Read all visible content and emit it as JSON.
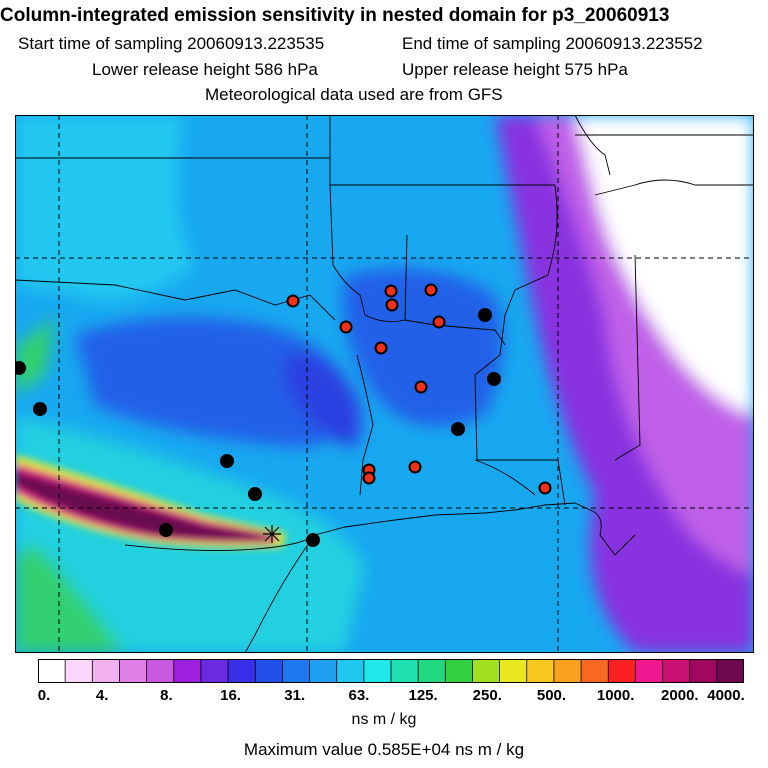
{
  "header": {
    "title": "Column-integrated emission sensitivity in nested domain for p3_20060913",
    "start_label": "Start time of sampling 20060913.223535",
    "end_label": "End time of sampling 20060913.223552",
    "lower_label": "Lower release height  586 hPa",
    "upper_label": "Upper release height  575 hPa",
    "met_label": "Meteorological data used are from GFS"
  },
  "colorbar": {
    "ticks": [
      "0.",
      "4.",
      "8.",
      "16.",
      "31.",
      "63.",
      "125.",
      "250.",
      "500.",
      "1000.",
      "2000.",
      "4000."
    ],
    "colors": [
      "#ffffff",
      "#fbd8fb",
      "#f2b2f2",
      "#e080e8",
      "#c858e0",
      "#a020e0",
      "#6a2ae0",
      "#3a30e8",
      "#2050e8",
      "#1e78f0",
      "#20a0f0",
      "#20c8f0",
      "#20e8e8",
      "#20e0b0",
      "#20d880",
      "#30d040",
      "#a0e020",
      "#e8e820",
      "#f8c820",
      "#f8a020",
      "#f86820",
      "#f82020",
      "#f01890",
      "#c81070",
      "#a00860",
      "#700850"
    ],
    "unit": "ns m / kg"
  },
  "footer": {
    "max_value": "Maximum value  0.585E+04 ns m / kg"
  },
  "map": {
    "colors": {
      "background": "#18a8f0",
      "coast_fill": "#28c8f0",
      "blue_zone": "#2060e8",
      "deep_blue": "#2a40e0",
      "purple": "#8830e0",
      "magenta": "#c060e8",
      "white_zone": "#ffffff",
      "plume_outer": "#e8e820",
      "plume_mid": "#e0208c",
      "plume_core": "#6a0a50",
      "green": "#30d070",
      "red_marker": "#f03018",
      "black_marker": "#000000"
    }
  }
}
